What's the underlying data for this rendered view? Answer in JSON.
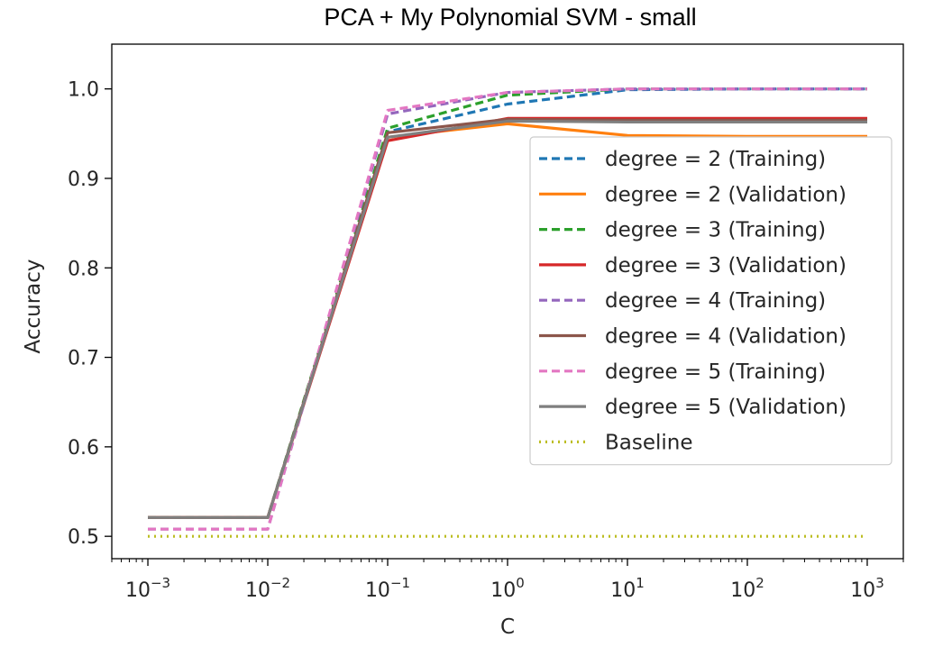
{
  "chart_data": {
    "type": "line",
    "title": "PCA + My Polynomial SVM - small",
    "xlabel": "C",
    "ylabel": "Accuracy",
    "xscale": "log",
    "xlim": [
      0.0005,
      2000
    ],
    "ylim": [
      0.475,
      1.05
    ],
    "x": [
      0.001,
      0.01,
      0.1,
      1,
      10,
      100,
      1000
    ],
    "x_ticks": [
      {
        "value": 0.001,
        "base": "10",
        "exp": "−3"
      },
      {
        "value": 0.01,
        "base": "10",
        "exp": "−2"
      },
      {
        "value": 0.1,
        "base": "10",
        "exp": "−1"
      },
      {
        "value": 1,
        "base": "10",
        "exp": "0"
      },
      {
        "value": 10,
        "base": "10",
        "exp": "1"
      },
      {
        "value": 100,
        "base": "10",
        "exp": "2"
      },
      {
        "value": 1000,
        "base": "10",
        "exp": "3"
      }
    ],
    "y_ticks": [
      {
        "value": 0.5,
        "label": "0.5"
      },
      {
        "value": 0.6,
        "label": "0.6"
      },
      {
        "value": 0.7,
        "label": "0.7"
      },
      {
        "value": 0.8,
        "label": "0.8"
      },
      {
        "value": 0.9,
        "label": "0.9"
      },
      {
        "value": 1.0,
        "label": "1.0"
      }
    ],
    "legend_position": "center-right",
    "grid": false,
    "series": [
      {
        "name": "degree = 2 (Training)",
        "color": "#1f77b4",
        "style": "dashed",
        "values": [
          0.521,
          0.521,
          0.952,
          0.983,
          0.999,
          1.0,
          1.0
        ]
      },
      {
        "name": "degree = 2 (Validation)",
        "color": "#ff7f0e",
        "style": "solid",
        "values": [
          0.521,
          0.521,
          0.946,
          0.961,
          0.948,
          0.947,
          0.947
        ]
      },
      {
        "name": "degree = 3 (Training)",
        "color": "#2ca02c",
        "style": "dashed",
        "values": [
          0.521,
          0.521,
          0.956,
          0.993,
          1.0,
          1.0,
          1.0
        ]
      },
      {
        "name": "degree = 3 (Validation)",
        "color": "#d62728",
        "style": "solid",
        "values": [
          0.521,
          0.521,
          0.942,
          0.967,
          0.967,
          0.967,
          0.967
        ]
      },
      {
        "name": "degree = 4 (Training)",
        "color": "#9467bd",
        "style": "dashed",
        "values": [
          0.508,
          0.508,
          0.972,
          0.996,
          1.0,
          1.0,
          1.0
        ]
      },
      {
        "name": "degree = 4 (Validation)",
        "color": "#8c564b",
        "style": "solid",
        "values": [
          0.521,
          0.521,
          0.951,
          0.966,
          0.965,
          0.965,
          0.965
        ]
      },
      {
        "name": "degree = 5 (Training)",
        "color": "#e377c2",
        "style": "dashed",
        "values": [
          0.508,
          0.508,
          0.976,
          0.996,
          1.0,
          1.0,
          1.0
        ]
      },
      {
        "name": "degree = 5 (Validation)",
        "color": "#7f7f7f",
        "style": "solid",
        "values": [
          0.521,
          0.521,
          0.946,
          0.964,
          0.963,
          0.963,
          0.963
        ]
      },
      {
        "name": "Baseline",
        "color": "#bcbd22",
        "style": "dotted",
        "values": [
          0.5,
          0.5,
          0.5,
          0.5,
          0.5,
          0.5,
          0.5
        ]
      }
    ]
  }
}
